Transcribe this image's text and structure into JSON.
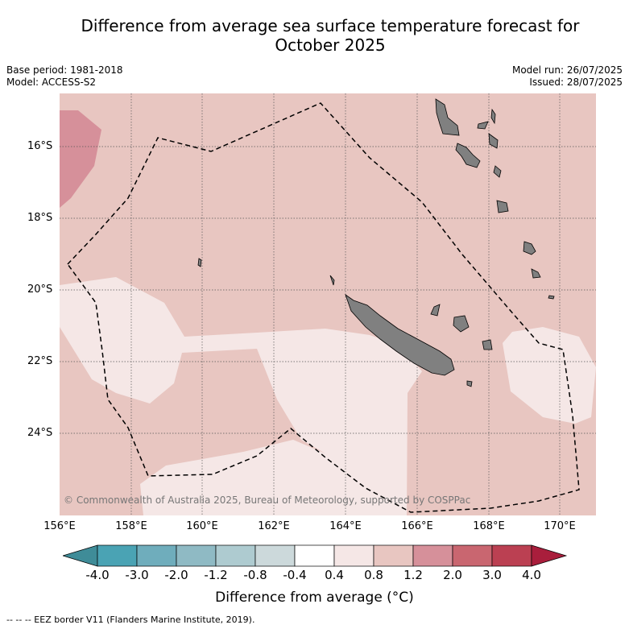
{
  "title_line1": "Difference from average sea surface temperature forecast for",
  "title_line2": "October 2025",
  "meta_left": {
    "base_period": "Base period: 1981-2018",
    "model": "Model: ACCESS-S2"
  },
  "meta_right": {
    "model_run": "Model run: 26/07/2025",
    "issued": "Issued: 28/07/2025"
  },
  "lat_ticks": [
    "16°S",
    "18°S",
    "20°S",
    "22°S",
    "24°S"
  ],
  "lon_ticks": [
    "156°E",
    "158°E",
    "160°E",
    "162°E",
    "164°E",
    "166°E",
    "168°E",
    "170°E"
  ],
  "copyright": "© Commonwealth of Australia 2025, Bureau of Meteorology, supported by COSPPac",
  "colorbar": {
    "labels": [
      "-4.0",
      "-3.0",
      "-2.0",
      "-1.2",
      "-0.8",
      "-0.4",
      "0.4",
      "0.8",
      "1.2",
      "2.0",
      "3.0",
      "4.0"
    ],
    "colors": [
      "#3f8c98",
      "#4aa3b4",
      "#6fadbc",
      "#8fbac4",
      "#aecbd0",
      "#ccd9db",
      "#ffffff",
      "#f5e7e6",
      "#e8c6c1",
      "#d6909a",
      "#c96670",
      "#bb4052",
      "#a91e3c"
    ],
    "title": "Difference from average (°C)"
  },
  "footnote": "-- -- -- EEZ border V11 (Flanders Marine Institute, 2019).",
  "colors": {
    "land": "#808080",
    "ocean_base": "#e8c6c1",
    "warm_patch": "#d6909a",
    "near_normal": "#f5e7e6"
  }
}
